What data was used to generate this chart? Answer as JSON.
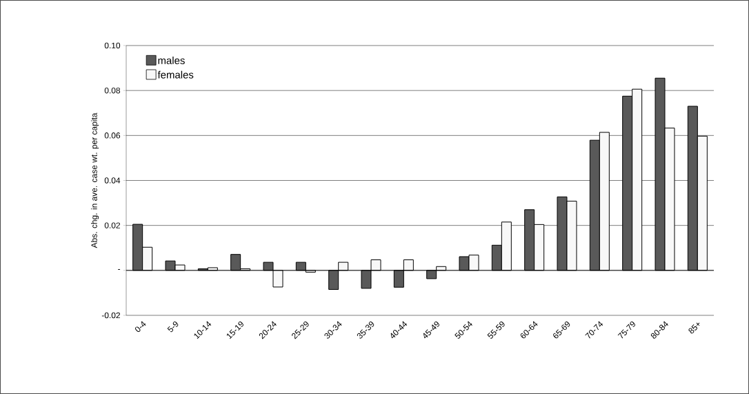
{
  "chart_data": {
    "type": "bar",
    "ylabel": "Abs. chg. in ave. case wt. per capita",
    "categories": [
      "0-4",
      "5-9",
      "10-14",
      "15-19",
      "20-24",
      "25-29",
      "30-34",
      "35-39",
      "40-44",
      "45-49",
      "50-54",
      "55-59",
      "60-64",
      "65-69",
      "70-74",
      "75-79",
      "80-84",
      "85+"
    ],
    "series": [
      {
        "name": "males",
        "color": "#595959",
        "values": [
          0.0205,
          0.0042,
          0.0007,
          0.0071,
          0.0036,
          0.0036,
          -0.0085,
          -0.008,
          -0.0075,
          -0.0037,
          0.0061,
          0.0112,
          0.027,
          0.0327,
          0.0579,
          0.0775,
          0.0855,
          0.073
        ]
      },
      {
        "name": "females",
        "color": "#f8f8f8",
        "values": [
          0.0103,
          0.0024,
          0.0012,
          0.0007,
          -0.0074,
          -0.0008,
          0.0036,
          0.0047,
          0.0047,
          0.0017,
          0.0068,
          0.0215,
          0.0204,
          0.0308,
          0.0614,
          0.0806,
          0.0633,
          0.0597
        ]
      }
    ],
    "ylim": [
      -0.02,
      0.1
    ],
    "yticks": [
      {
        "value": -0.02,
        "label": "-0.02"
      },
      {
        "value": 0,
        "label": "-"
      },
      {
        "value": 0.02,
        "label": "0.02"
      },
      {
        "value": 0.04,
        "label": "0.04"
      },
      {
        "value": 0.06,
        "label": "0.06"
      },
      {
        "value": 0.08,
        "label": "0.08"
      },
      {
        "value": 0.1,
        "label": "0.10"
      }
    ],
    "grid": "y",
    "legend": "top left"
  }
}
